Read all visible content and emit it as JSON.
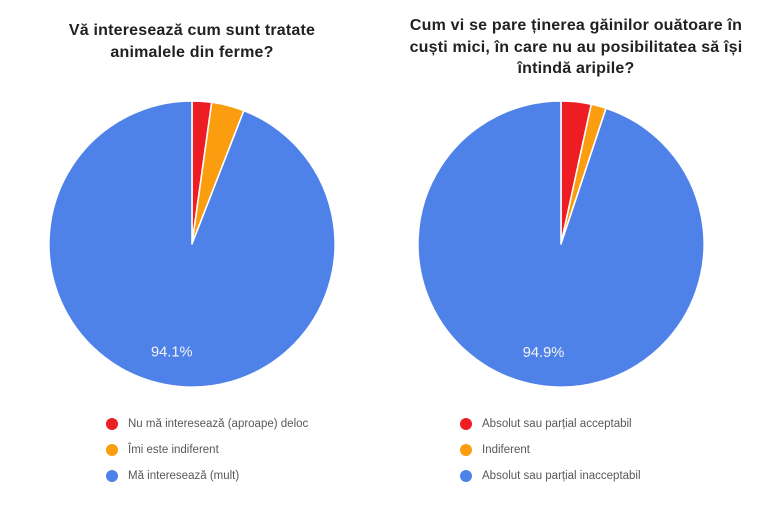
{
  "colors": {
    "red": "#EE1D23",
    "orange": "#FA9D0F",
    "blue": "#4E82E8",
    "title_text": "#212121",
    "legend_text": "#58585A",
    "pct_label_text": "#F1F3F4",
    "background": "#FFFFFF"
  },
  "chart_data": [
    {
      "type": "pie",
      "title": "Vă interesează cum sunt tratate animalele din ferme?",
      "start_angle": "12-oclock",
      "direction": "clockwise",
      "legend_position": "bottom-left",
      "slices": [
        {
          "label": "Nu mă interesează (aproape) deloc",
          "value": 2.2,
          "color": "red",
          "pct_label": ""
        },
        {
          "label": "Îmi este indiferent",
          "value": 3.7,
          "color": "orange",
          "pct_label": ""
        },
        {
          "label": "Mă interesează (mult)",
          "value": 94.1,
          "color": "blue",
          "pct_label": "94.1%"
        }
      ]
    },
    {
      "type": "pie",
      "title": "Cum vi se pare ținerea găinilor ouătoare în cuști mici, în care nu au posibilitatea să își întindă aripile?",
      "start_angle": "12-oclock",
      "direction": "clockwise",
      "legend_position": "bottom-left",
      "slices": [
        {
          "label": "Absolut sau parțial acceptabil",
          "value": 3.4,
          "color": "red",
          "pct_label": ""
        },
        {
          "label": "Indiferent",
          "value": 1.7,
          "color": "orange",
          "pct_label": ""
        },
        {
          "label": "Absolut sau parțial inacceptabil",
          "value": 94.9,
          "color": "blue",
          "pct_label": "94.9%"
        }
      ]
    }
  ]
}
